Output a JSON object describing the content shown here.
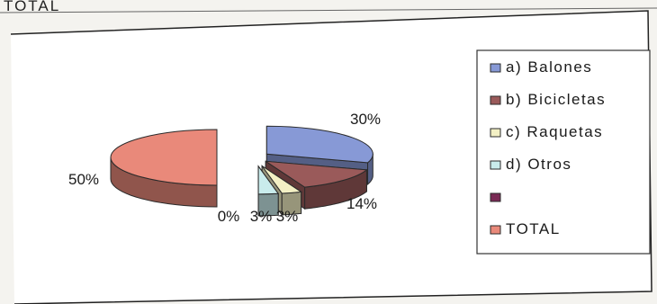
{
  "header_text": "TOTAL",
  "chart_data": {
    "type": "pie",
    "title": "",
    "style": "3d-exploded",
    "legend_position": "right",
    "slices": [
      {
        "label": "a) Balones",
        "value": 30,
        "data_label": "30%",
        "color": "#8799d6"
      },
      {
        "label": "b) Bicicletas",
        "value": 14,
        "data_label": "14%",
        "color": "#9a5a5a"
      },
      {
        "label": "c) Raquetas",
        "value": 3,
        "data_label": "3%",
        "color": "#f3f0c4"
      },
      {
        "label": "d) Otros",
        "value": 3,
        "data_label": "3%",
        "color": "#c9ecec"
      },
      {
        "label": "",
        "value": 0,
        "data_label": "0%",
        "color": "#7a2a55"
      },
      {
        "label": "TOTAL",
        "value": 50,
        "data_label": "50%",
        "color": "#e9897a"
      }
    ]
  }
}
